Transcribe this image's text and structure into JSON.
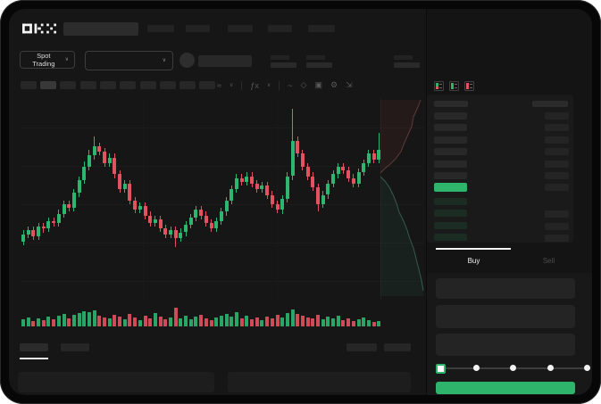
{
  "brand": {
    "logo_text": "OKX"
  },
  "nav": {
    "placeholder_count": 5
  },
  "market_bar": {
    "market_type_selector": {
      "label": "Spot Trading",
      "chevron": "∨"
    },
    "pair_selector": {
      "chevron": "∨"
    },
    "stat_placeholder_count": 5
  },
  "chart_toolbar": {
    "timeframe_placeholder_count": 10,
    "active_timeframe_index": 1,
    "icons": [
      {
        "name": "chart-type-icon",
        "glyph": "≈"
      },
      {
        "name": "chart-type-caret-icon",
        "glyph": "∨"
      },
      {
        "name": "divider",
        "glyph": ""
      },
      {
        "name": "indicators-icon",
        "glyph": "ƒx"
      },
      {
        "name": "indicators-caret-icon",
        "glyph": "∨"
      },
      {
        "name": "divider",
        "glyph": ""
      },
      {
        "name": "trendline-tool-icon",
        "glyph": "~"
      },
      {
        "name": "compare-icon",
        "glyph": "◇"
      },
      {
        "name": "snapshot-icon",
        "glyph": "▣"
      },
      {
        "name": "settings-icon",
        "glyph": "⚙"
      },
      {
        "name": "fullscreen-icon",
        "glyph": "⇲"
      }
    ]
  },
  "chart_data": {
    "type": "candlestick",
    "title": "",
    "x": "71 sequential time intervals (tick labels not visible in screenshot)",
    "price_scale": "relative units 0-100 (price axis labels not visible in screenshot)",
    "legend": "none",
    "grid": "faint horizontal and vertical lines",
    "colors": {
      "up": "#2eb56f",
      "down": "#e0535f"
    },
    "candles": [
      [
        30,
        36,
        28,
        34
      ],
      [
        34,
        38,
        32,
        36
      ],
      [
        36,
        38,
        31,
        33
      ],
      [
        33,
        40,
        31,
        38
      ],
      [
        38,
        40,
        35,
        37
      ],
      [
        37,
        43,
        35,
        41
      ],
      [
        41,
        43,
        38,
        40
      ],
      [
        40,
        47,
        38,
        45
      ],
      [
        45,
        52,
        43,
        50
      ],
      [
        50,
        52,
        46,
        48
      ],
      [
        48,
        58,
        46,
        56
      ],
      [
        56,
        65,
        54,
        63
      ],
      [
        63,
        73,
        61,
        70
      ],
      [
        70,
        79,
        68,
        76
      ],
      [
        76,
        86,
        74,
        81
      ],
      [
        81,
        83,
        76,
        78
      ],
      [
        78,
        80,
        70,
        72
      ],
      [
        72,
        77,
        70,
        75
      ],
      [
        75,
        77,
        64,
        66
      ],
      [
        66,
        68,
        56,
        58
      ],
      [
        58,
        63,
        56,
        61
      ],
      [
        61,
        63,
        50,
        52
      ],
      [
        52,
        54,
        45,
        47
      ],
      [
        47,
        51,
        45,
        49
      ],
      [
        49,
        51,
        42,
        44
      ],
      [
        44,
        46,
        38,
        40
      ],
      [
        40,
        44,
        38,
        42
      ],
      [
        42,
        44,
        35,
        37
      ],
      [
        37,
        39,
        32,
        34
      ],
      [
        34,
        38,
        32,
        36
      ],
      [
        36,
        38,
        27,
        32
      ],
      [
        32,
        37,
        30,
        35
      ],
      [
        35,
        41,
        33,
        39
      ],
      [
        39,
        45,
        37,
        43
      ],
      [
        43,
        49,
        41,
        47
      ],
      [
        47,
        49,
        42,
        44
      ],
      [
        44,
        46,
        38,
        40
      ],
      [
        40,
        42,
        35,
        37
      ],
      [
        37,
        43,
        35,
        41
      ],
      [
        41,
        48,
        39,
        46
      ],
      [
        46,
        54,
        44,
        52
      ],
      [
        52,
        60,
        50,
        58
      ],
      [
        58,
        66,
        56,
        64
      ],
      [
        64,
        66,
        60,
        62
      ],
      [
        62,
        67,
        60,
        65
      ],
      [
        65,
        67,
        59,
        61
      ],
      [
        61,
        63,
        56,
        58
      ],
      [
        58,
        62,
        56,
        60
      ],
      [
        60,
        62,
        53,
        55
      ],
      [
        55,
        57,
        48,
        50
      ],
      [
        50,
        52,
        45,
        47
      ],
      [
        47,
        55,
        45,
        53
      ],
      [
        53,
        67,
        51,
        65
      ],
      [
        65,
        101,
        63,
        84
      ],
      [
        84,
        86,
        75,
        77
      ],
      [
        77,
        79,
        68,
        70
      ],
      [
        70,
        72,
        63,
        65
      ],
      [
        65,
        67,
        57,
        59
      ],
      [
        59,
        61,
        46,
        50
      ],
      [
        50,
        57,
        48,
        55
      ],
      [
        55,
        63,
        53,
        61
      ],
      [
        61,
        68,
        59,
        66
      ],
      [
        66,
        72,
        64,
        70
      ],
      [
        70,
        72,
        66,
        68
      ],
      [
        68,
        70,
        62,
        64
      ],
      [
        64,
        66,
        59,
        61
      ],
      [
        61,
        69,
        59,
        67
      ],
      [
        67,
        74,
        65,
        72
      ],
      [
        72,
        79,
        70,
        77
      ],
      [
        77,
        79,
        72,
        74
      ],
      [
        74,
        88,
        72,
        79
      ]
    ],
    "volume": [
      8,
      10,
      6,
      9,
      7,
      11,
      8,
      12,
      14,
      9,
      13,
      15,
      17,
      16,
      18,
      12,
      10,
      9,
      13,
      11,
      8,
      14,
      10,
      7,
      12,
      9,
      15,
      11,
      8,
      10,
      21,
      9,
      12,
      8,
      11,
      13,
      9,
      7,
      10,
      12,
      14,
      11,
      16,
      9,
      12,
      8,
      10,
      7,
      11,
      9,
      13,
      10,
      15,
      19,
      14,
      12,
      10,
      9,
      13,
      8,
      11,
      9,
      12,
      7,
      9,
      6,
      8,
      10,
      7,
      5,
      6
    ],
    "depth_overlay": {
      "description": "vertical market-depth profile on right edge of chart",
      "asks_line_points": [
        [
          45,
          2
        ],
        [
          42,
          10
        ],
        [
          37,
          21
        ],
        [
          35,
          32
        ],
        [
          30,
          43
        ],
        [
          26,
          52
        ],
        [
          23,
          60
        ],
        [
          17,
          68
        ],
        [
          11,
          74
        ],
        [
          5,
          79
        ],
        [
          0,
          84
        ]
      ],
      "bids_line_points": [
        [
          0,
          88
        ],
        [
          5,
          93
        ],
        [
          10,
          100
        ],
        [
          14,
          108
        ],
        [
          18,
          118
        ],
        [
          21,
          128
        ],
        [
          26,
          138
        ],
        [
          30,
          148
        ],
        [
          33,
          158
        ],
        [
          37,
          168
        ],
        [
          40,
          180
        ],
        [
          43,
          192
        ],
        [
          46,
          204
        ],
        [
          48,
          216
        ]
      ],
      "asks_color": "#6e4540",
      "bids_color": "#3c6b59"
    }
  },
  "order_book": {
    "view_mode_icons": [
      {
        "name": "book-bids-asks-icon"
      },
      {
        "name": "book-bids-only-icon"
      },
      {
        "name": "book-asks-only-icon"
      }
    ],
    "header_placeholder_count": 2,
    "ask_row_count": 6,
    "bid_row_count": 4,
    "last_price_highlight_color": "#2fb46c"
  },
  "trade_panel": {
    "tabs": [
      {
        "label": "Buy",
        "active": true
      },
      {
        "label": "Sell",
        "active": false
      }
    ],
    "field_count": 3,
    "amount_slider": {
      "stop_count": 5,
      "selected_index": 0,
      "handle_color": "#2fb46c"
    },
    "submit_button": {
      "color": "#2fb46c"
    }
  },
  "bottom_bar": {
    "tab_placeholder_count": 2,
    "active_tab_index": 0,
    "right_placeholder_count": 2,
    "panel_count": 2
  },
  "colors": {
    "screen_bg": "#161616",
    "bezel": "#070707",
    "placeholder": "#262626",
    "green": "#2eb56f",
    "red": "#e0535f"
  }
}
